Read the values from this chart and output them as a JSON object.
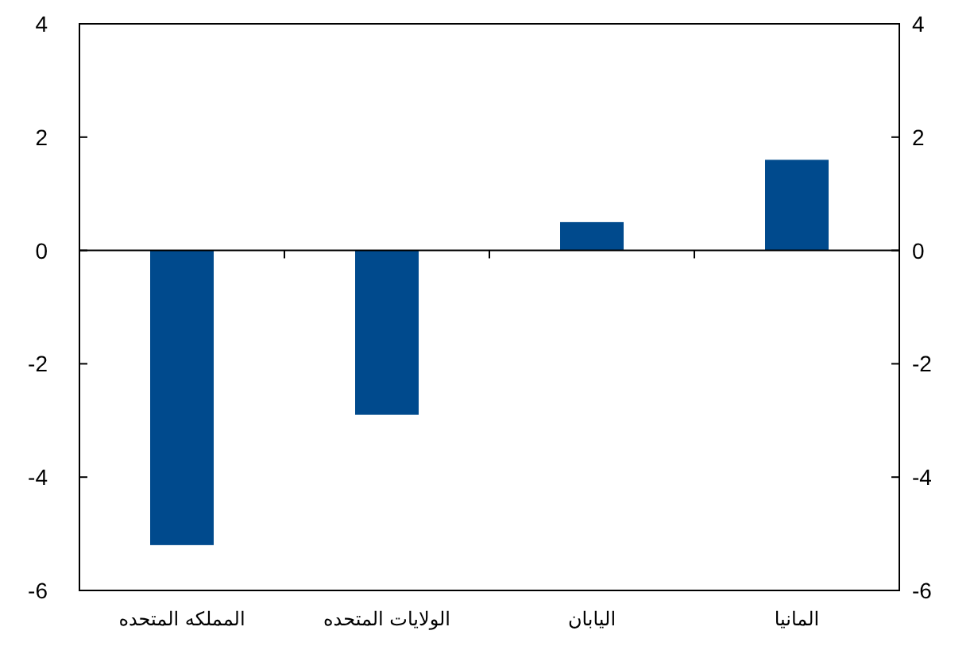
{
  "chart_data": {
    "type": "bar",
    "categories": [
      "المملكه المتحده",
      "الولايات المتحده",
      "اليابان",
      "المانيا"
    ],
    "values": [
      -5.2,
      -2.9,
      0.5,
      1.6
    ],
    "color": "#004a8d",
    "ylim": [
      -6,
      4
    ],
    "yticks": [
      -6,
      -4,
      -2,
      0,
      2,
      4
    ],
    "y2lim": [
      -6,
      4
    ],
    "y2ticks": [
      -6,
      -4,
      -2,
      0,
      2,
      4
    ]
  }
}
